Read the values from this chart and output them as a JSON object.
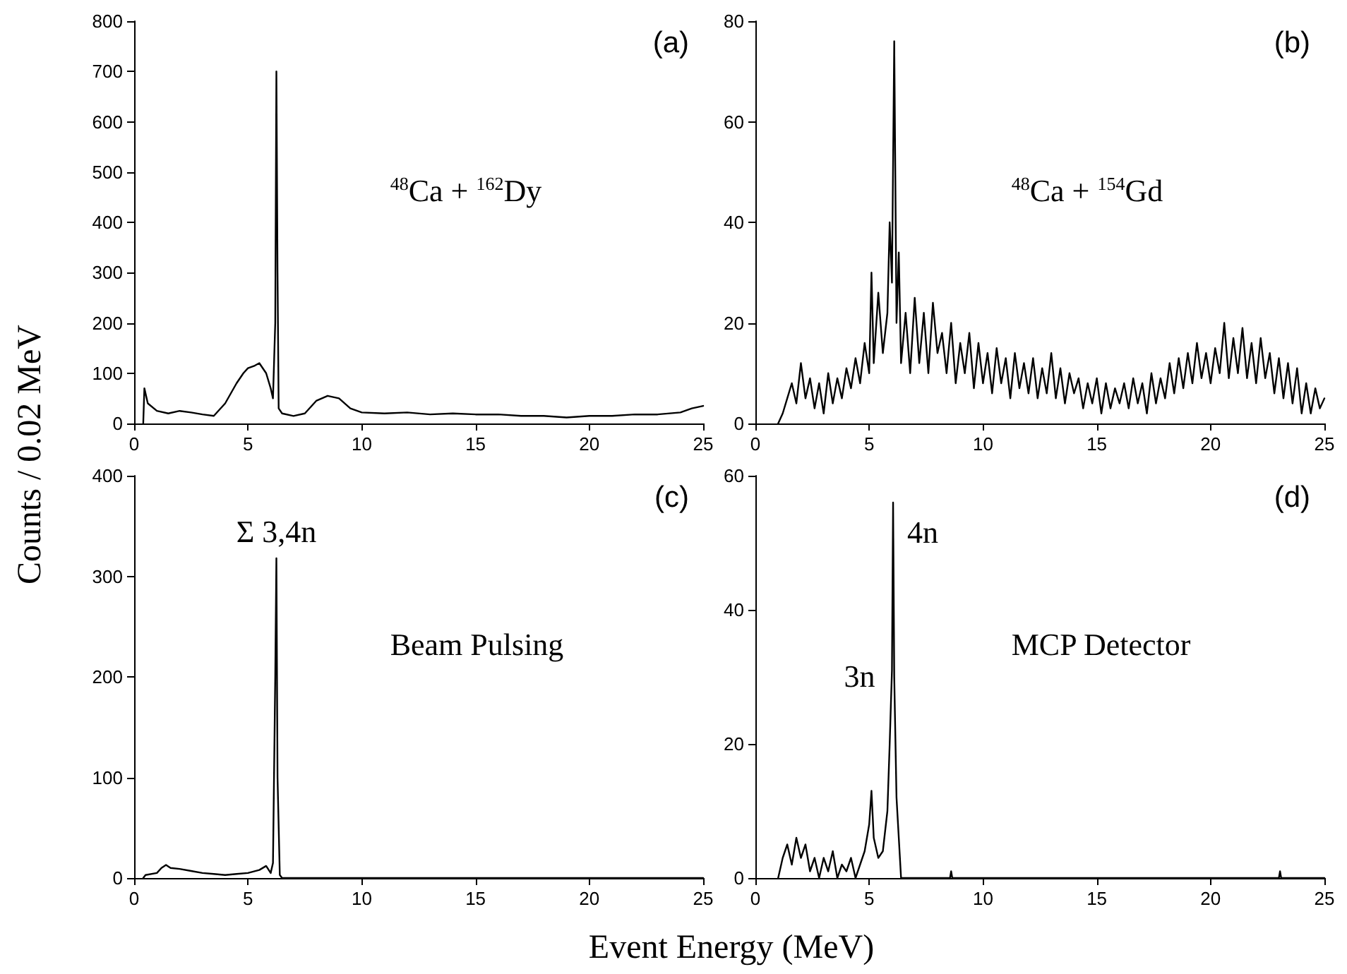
{
  "chart_data": [
    {
      "type": "line",
      "ylabel": "Counts / 0.02 MeV",
      "xlim": [
        0,
        25
      ],
      "xticks": [
        0,
        5,
        10,
        15,
        20,
        25
      ],
      "ylim": [
        0,
        800
      ],
      "yticks": [
        0,
        100,
        200,
        300,
        400,
        500,
        600,
        700,
        800
      ],
      "marker": "none",
      "line_style": "solid",
      "annotations": [
        "(a)",
        "$^{48}$Ca + $^{162}$Dy"
      ],
      "series": [
        {
          "color": "#000000",
          "x": [
            0.4,
            0.45,
            0.6,
            1,
            1.5,
            2,
            2.5,
            3,
            3.5,
            4,
            4.5,
            4.8,
            5,
            5.3,
            5.5,
            5.8,
            6.0,
            6.1,
            6.2,
            6.25,
            6.3,
            6.35,
            6.5,
            7,
            7.5,
            8,
            8.5,
            9,
            9.5,
            10,
            11,
            12,
            13,
            14,
            15,
            16,
            17,
            18,
            19,
            20,
            21,
            22,
            23,
            24,
            24.5,
            25
          ],
          "values": [
            0,
            70,
            40,
            25,
            20,
            25,
            22,
            18,
            15,
            40,
            80,
            100,
            110,
            115,
            120,
            100,
            70,
            50,
            200,
            700,
            300,
            30,
            20,
            15,
            20,
            45,
            55,
            50,
            30,
            22,
            20,
            22,
            18,
            20,
            18,
            18,
            15,
            15,
            12,
            15,
            15,
            18,
            18,
            22,
            30,
            35
          ]
        }
      ]
    },
    {
      "type": "line",
      "xlim": [
        0,
        25
      ],
      "xticks": [
        0,
        5,
        10,
        15,
        20,
        25
      ],
      "ylim": [
        0,
        80
      ],
      "yticks": [
        0,
        20,
        40,
        60,
        80
      ],
      "marker": "none",
      "line_style": "solid",
      "annotations": [
        "(b)",
        "$^{48}$Ca + $^{154}$Gd"
      ],
      "series": [
        {
          "color": "#000000",
          "x": [
            1.0,
            1.2,
            1.4,
            1.6,
            1.8,
            2.0,
            2.2,
            2.4,
            2.6,
            2.8,
            3.0,
            3.2,
            3.4,
            3.6,
            3.8,
            4.0,
            4.2,
            4.4,
            4.6,
            4.8,
            5.0,
            5.1,
            5.2,
            5.4,
            5.6,
            5.8,
            5.9,
            6.0,
            6.1,
            6.2,
            6.3,
            6.4,
            6.6,
            6.8,
            7.0,
            7.2,
            7.4,
            7.6,
            7.8,
            8.0,
            8.2,
            8.4,
            8.6,
            8.8,
            9.0,
            9.2,
            9.4,
            9.6,
            9.8,
            10.0,
            10.2,
            10.4,
            10.6,
            10.8,
            11.0,
            11.2,
            11.4,
            11.6,
            11.8,
            12.0,
            12.2,
            12.4,
            12.6,
            12.8,
            13.0,
            13.2,
            13.4,
            13.6,
            13.8,
            14.0,
            14.2,
            14.4,
            14.6,
            14.8,
            15.0,
            15.2,
            15.4,
            15.6,
            15.8,
            16.0,
            16.2,
            16.4,
            16.6,
            16.8,
            17.0,
            17.2,
            17.4,
            17.6,
            17.8,
            18.0,
            18.2,
            18.4,
            18.6,
            18.8,
            19.0,
            19.2,
            19.4,
            19.6,
            19.8,
            20.0,
            20.2,
            20.4,
            20.6,
            20.8,
            21.0,
            21.2,
            21.4,
            21.6,
            21.8,
            22.0,
            22.2,
            22.4,
            22.6,
            22.8,
            23.0,
            23.2,
            23.4,
            23.6,
            23.8,
            24.0,
            24.2,
            24.4,
            24.6,
            24.8,
            25.0
          ],
          "values": [
            0,
            2,
            5,
            8,
            4,
            12,
            5,
            9,
            3,
            8,
            2,
            10,
            4,
            9,
            5,
            11,
            7,
            13,
            8,
            16,
            10,
            30,
            12,
            26,
            14,
            22,
            40,
            28,
            76,
            20,
            34,
            12,
            22,
            10,
            25,
            12,
            22,
            10,
            24,
            14,
            18,
            10,
            20,
            8,
            16,
            10,
            18,
            7,
            16,
            8,
            14,
            6,
            15,
            8,
            13,
            5,
            14,
            7,
            12,
            6,
            13,
            5,
            11,
            6,
            14,
            5,
            11,
            4,
            10,
            6,
            9,
            3,
            8,
            4,
            9,
            2,
            8,
            3,
            7,
            4,
            8,
            3,
            9,
            4,
            8,
            2,
            10,
            4,
            9,
            5,
            12,
            6,
            13,
            7,
            14,
            8,
            16,
            9,
            14,
            8,
            15,
            10,
            20,
            9,
            17,
            10,
            19,
            9,
            16,
            8,
            17,
            9,
            14,
            6,
            13,
            5,
            12,
            4,
            11,
            2,
            8,
            2,
            7,
            3,
            5
          ]
        }
      ]
    },
    {
      "type": "line",
      "xlabel": "Event Energy (MeV)",
      "xlim": [
        0,
        25
      ],
      "xticks": [
        0,
        5,
        10,
        15,
        20,
        25
      ],
      "ylim": [
        0,
        400
      ],
      "yticks": [
        0,
        100,
        200,
        300,
        400
      ],
      "marker": "none",
      "line_style": "solid",
      "annotations": [
        "(c)",
        "Beam Pulsing",
        {
          "text": "Σ 3,4n",
          "x": 6.25,
          "y": 318
        }
      ],
      "series": [
        {
          "color": "#000000",
          "x": [
            0.4,
            0.5,
            1,
            1.2,
            1.4,
            1.6,
            2,
            2.5,
            3,
            3.5,
            4,
            4.5,
            5,
            5.5,
            5.8,
            6.0,
            6.1,
            6.2,
            6.25,
            6.3,
            6.4,
            6.5,
            25
          ],
          "values": [
            0,
            3,
            5,
            10,
            13,
            10,
            9,
            7,
            5,
            4,
            3,
            4,
            5,
            8,
            12,
            5,
            15,
            200,
            318,
            100,
            3,
            0,
            0
          ]
        }
      ]
    },
    {
      "type": "line",
      "xlim": [
        0,
        25
      ],
      "xticks": [
        0,
        5,
        10,
        15,
        20,
        25
      ],
      "ylim": [
        0,
        60
      ],
      "yticks": [
        0,
        20,
        40,
        60
      ],
      "marker": "none",
      "line_style": "solid",
      "annotations": [
        "(d)",
        "MCP Detector",
        {
          "text": "3n",
          "x": 6.0,
          "y": 31
        },
        {
          "text": "4n",
          "x": 6.05,
          "y": 56
        }
      ],
      "series": [
        {
          "color": "#000000",
          "x": [
            1.0,
            1.2,
            1.4,
            1.6,
            1.8,
            2.0,
            2.2,
            2.4,
            2.6,
            2.8,
            3.0,
            3.2,
            3.4,
            3.6,
            3.8,
            4.0,
            4.2,
            4.4,
            4.6,
            4.8,
            5.0,
            5.1,
            5.2,
            5.4,
            5.6,
            5.8,
            5.9,
            6.0,
            6.05,
            6.1,
            6.2,
            6.3,
            6.4,
            8.55,
            8.6,
            8.65,
            23.0,
            23.05,
            23.1,
            25
          ],
          "values": [
            0,
            3,
            5,
            2,
            6,
            3,
            5,
            1,
            3,
            0,
            3,
            1,
            4,
            0,
            2,
            1,
            3,
            0,
            2,
            4,
            8,
            13,
            6,
            3,
            4,
            10,
            20,
            31,
            56,
            30,
            12,
            6,
            0,
            0,
            1,
            0,
            0,
            1,
            0,
            0
          ]
        }
      ]
    }
  ]
}
